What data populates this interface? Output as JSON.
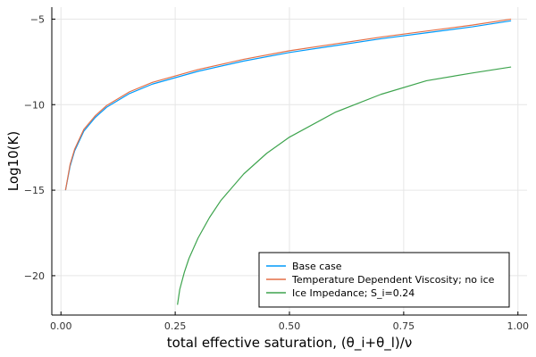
{
  "chart_data": {
    "type": "line",
    "title": "",
    "xlabel": "total effective saturation, (θ_i+θ_l)/ν",
    "ylabel": "Log10(K)",
    "xlim": [
      -0.02,
      1.02
    ],
    "ylim": [
      -22.3,
      -4.3
    ],
    "xticks": [
      0.0,
      0.25,
      0.5,
      0.75,
      1.0
    ],
    "xtick_labels": [
      "0.00",
      "0.25",
      "0.50",
      "0.75",
      "1.00"
    ],
    "yticks": [
      -20,
      -15,
      -10,
      -5
    ],
    "ytick_labels": [
      "−20",
      "−15",
      "−10",
      "−5"
    ],
    "grid": true,
    "legend_position": "bottom-right",
    "series": [
      {
        "name": "Base case",
        "color": "#009AFA",
        "x": [
          0.01,
          0.02,
          0.03,
          0.05,
          0.075,
          0.1,
          0.15,
          0.2,
          0.3,
          0.4,
          0.5,
          0.6,
          0.7,
          0.8,
          0.9,
          0.985
        ],
        "y": [
          -15.0,
          -13.6,
          -12.7,
          -11.55,
          -10.75,
          -10.15,
          -9.35,
          -8.8,
          -8.05,
          -7.45,
          -6.95,
          -6.55,
          -6.15,
          -5.8,
          -5.45,
          -5.1
        ]
      },
      {
        "name": "Temperature Dependent Viscosity; no ice",
        "color": "#E36F47",
        "x": [
          0.01,
          0.02,
          0.03,
          0.05,
          0.075,
          0.1,
          0.15,
          0.2,
          0.3,
          0.4,
          0.5,
          0.6,
          0.7,
          0.8,
          0.9,
          0.985
        ],
        "y": [
          -15.0,
          -13.5,
          -12.6,
          -11.45,
          -10.65,
          -10.05,
          -9.25,
          -8.7,
          -7.95,
          -7.35,
          -6.85,
          -6.45,
          -6.05,
          -5.7,
          -5.35,
          -5.0
        ]
      },
      {
        "name": "Ice Impedance; S_i=0.24",
        "color": "#3EA44E",
        "x": [
          0.255,
          0.26,
          0.27,
          0.28,
          0.3,
          0.325,
          0.35,
          0.4,
          0.45,
          0.5,
          0.6,
          0.7,
          0.8,
          0.9,
          0.985
        ],
        "y": [
          -21.7,
          -20.8,
          -19.8,
          -19.0,
          -17.8,
          -16.6,
          -15.6,
          -14.05,
          -12.85,
          -11.9,
          -10.45,
          -9.4,
          -8.6,
          -8.15,
          -7.8
        ]
      }
    ]
  }
}
